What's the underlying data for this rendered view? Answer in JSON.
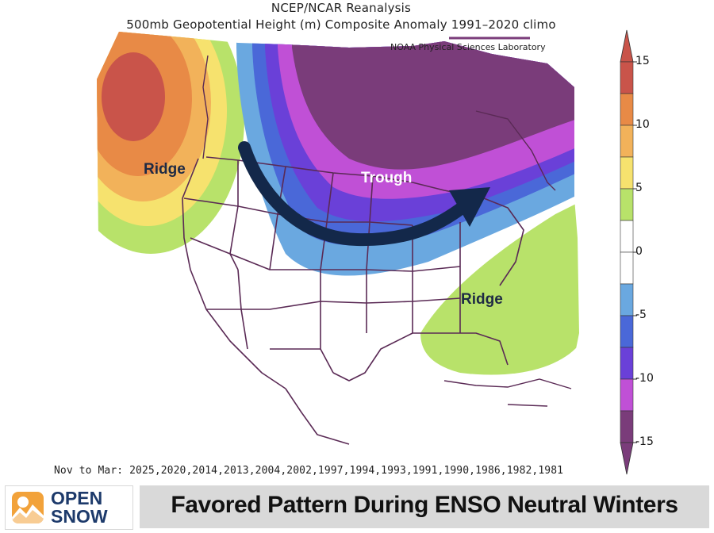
{
  "header": {
    "title_line1": "NCEP/NCAR Reanalysis",
    "title_line2": "500mb Geopotential Height (m) Composite Anomaly 1991–2020 climo",
    "credit": "NOAA Physical Sciences Laboratory"
  },
  "map_labels": {
    "ridge_west": "Ridge",
    "trough": "Trough",
    "ridge_southeast": "Ridge"
  },
  "colorbar": {
    "ticks": [
      "15",
      "10",
      "5",
      "0",
      "-5",
      "-10",
      "-15"
    ],
    "colors": [
      "#c9544a",
      "#e88a46",
      "#f2b25a",
      "#f6e26e",
      "#b8e26a",
      "#ffffff",
      "#ffffff",
      "#6aa8e0",
      "#4a68d8",
      "#6a40d8",
      "#c050d6",
      "#7a3c7a"
    ]
  },
  "footer": {
    "years_line": "Nov to Mar: 2025,2020,2014,2013,2004,2002,1997,1994,1993,1991,1990,1986,1982,1981",
    "logo_line1": "OPEN",
    "logo_line2": "SNOW",
    "headline": "Favored Pattern During ENSO Neutral Winters"
  },
  "colors": {
    "trough_core": "#7a3c7a",
    "ridge_core": "#d05a4a",
    "arrow": "#13284a",
    "brand_orange": "#f2a23a",
    "brand_navy": "#1d3a6b"
  }
}
